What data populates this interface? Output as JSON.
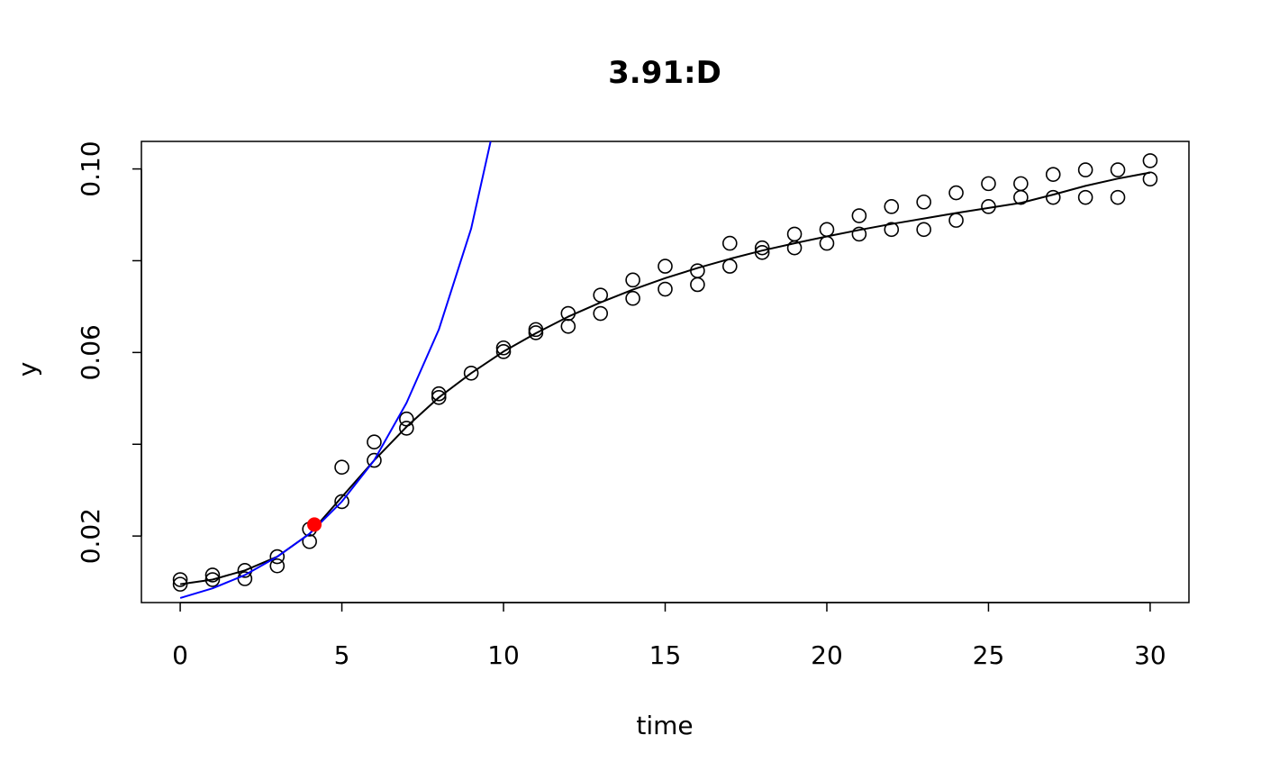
{
  "chart_data": {
    "type": "scatter",
    "title": "3.91:D",
    "xlabel": "time",
    "ylabel": "y",
    "xlim": [
      -1.2,
      31.2
    ],
    "ylim": [
      0.0055,
      0.106
    ],
    "x_ticks": [
      0,
      5,
      10,
      15,
      20,
      25,
      30
    ],
    "x_tick_labels": [
      "0",
      "5",
      "10",
      "15",
      "20",
      "25",
      "30"
    ],
    "y_ticks": [
      0.02,
      0.04,
      0.06,
      0.08,
      0.1
    ],
    "y_tick_labels": [
      "0.02",
      "",
      "0.06",
      "",
      "0.10"
    ],
    "grid": false,
    "colors": {
      "points": "#000000",
      "fit_curve": "#000000",
      "exp_curve": "#0000ff",
      "highlight": "#ff0000"
    },
    "series": [
      {
        "kind": "points",
        "x": [
          0,
          0,
          1,
          1,
          2,
          2,
          3,
          3,
          4,
          4,
          5,
          5,
          6,
          6,
          7,
          7,
          8,
          8,
          9,
          10,
          10,
          11,
          11,
          12,
          12,
          13,
          13,
          14,
          14,
          15,
          15,
          16,
          16,
          17,
          17,
          18,
          18,
          19,
          19,
          20,
          20,
          21,
          21,
          22,
          22,
          23,
          23,
          24,
          24,
          25,
          25,
          26,
          26,
          27,
          27,
          28,
          28,
          29,
          29,
          30,
          30
        ],
        "y": [
          0.0105,
          0.0095,
          0.0115,
          0.0105,
          0.0125,
          0.0107,
          0.0155,
          0.0135,
          0.0215,
          0.0188,
          0.035,
          0.0275,
          0.0405,
          0.0365,
          0.0455,
          0.0435,
          0.051,
          0.0502,
          0.0555,
          0.061,
          0.0602,
          0.065,
          0.0643,
          0.0685,
          0.0657,
          0.0725,
          0.0685,
          0.0758,
          0.0718,
          0.0788,
          0.0738,
          0.0778,
          0.0748,
          0.0838,
          0.0788,
          0.0828,
          0.0818,
          0.0858,
          0.0828,
          0.0868,
          0.0838,
          0.0898,
          0.0858,
          0.0918,
          0.0868,
          0.0928,
          0.0868,
          0.0948,
          0.0888,
          0.0968,
          0.0918,
          0.0968,
          0.0938,
          0.0988,
          0.0938,
          0.0998,
          0.0938,
          0.0998,
          0.0938,
          0.1018,
          0.0978
        ]
      },
      {
        "kind": "line",
        "x": [
          0,
          1,
          2,
          3,
          4,
          5,
          6,
          7,
          8,
          9,
          10,
          11,
          12,
          13,
          14,
          15,
          16,
          17,
          18,
          19,
          20,
          21,
          22,
          23,
          24,
          25,
          26,
          27,
          28,
          29,
          30
        ],
        "y": [
          0.0095,
          0.0105,
          0.0125,
          0.0155,
          0.0205,
          0.0285,
          0.0365,
          0.0438,
          0.0502,
          0.0555,
          0.0602,
          0.0642,
          0.0678,
          0.0709,
          0.0737,
          0.0762,
          0.0784,
          0.0804,
          0.0822,
          0.0838,
          0.0853,
          0.0867,
          0.088,
          0.0892,
          0.0904,
          0.0915,
          0.0926,
          0.0944,
          0.0963,
          0.0979,
          0.0992
        ]
      },
      {
        "kind": "line",
        "x": [
          0,
          1,
          2,
          3,
          4,
          5,
          6,
          7,
          8,
          9,
          9.6
        ],
        "y": [
          0.0065,
          0.0086,
          0.0115,
          0.0155,
          0.0205,
          0.0275,
          0.0365,
          0.049,
          0.065,
          0.087,
          0.106
        ]
      },
      {
        "kind": "highlight",
        "x": [
          4.15
        ],
        "y": [
          0.0225
        ]
      }
    ]
  }
}
